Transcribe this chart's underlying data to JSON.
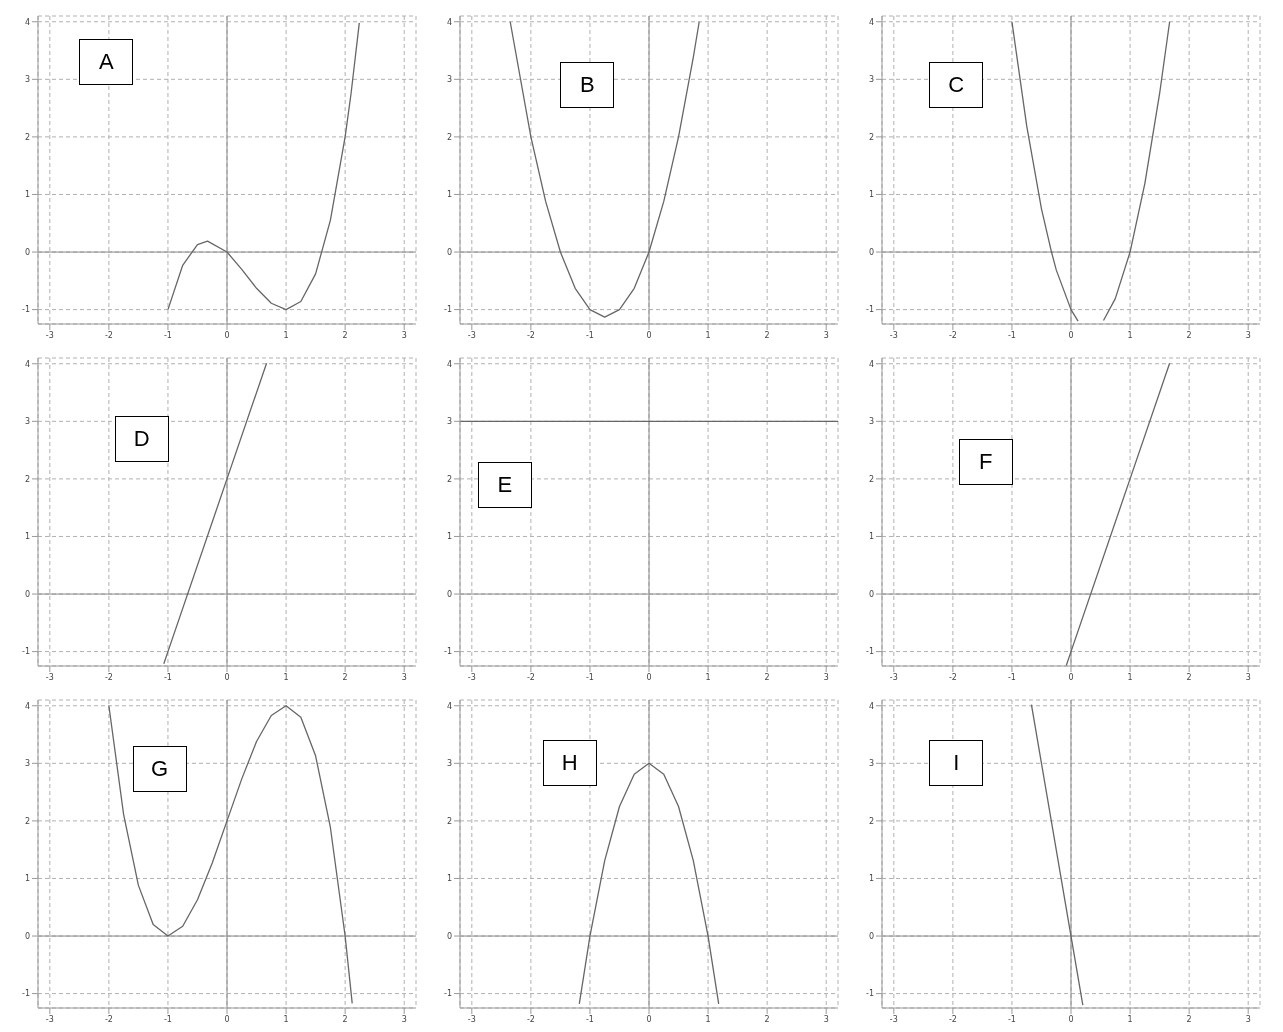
{
  "chart_data": [
    {
      "type": "line",
      "title": "A",
      "xlim": [
        -3.2,
        3.2
      ],
      "ylim": [
        -1.25,
        4.1
      ],
      "xticks": [
        -3,
        -2,
        -1,
        0,
        1,
        2,
        3
      ],
      "yticks": [
        -1,
        0,
        1,
        2,
        3,
        4
      ],
      "grid": true,
      "marker": "none",
      "line_style": "solid",
      "color": "#666666",
      "x": [
        -1,
        -0.75,
        -0.5,
        -0.33,
        0,
        0.25,
        0.5,
        0.75,
        1,
        1.25,
        1.5,
        1.75,
        2,
        2.1,
        2.24
      ],
      "values": [
        -1,
        -0.23,
        0.13,
        0.19,
        0,
        -0.3,
        -0.63,
        -0.89,
        -1,
        -0.86,
        -0.38,
        0.55,
        2,
        2.75,
        3.98
      ]
    },
    {
      "type": "line",
      "title": "B",
      "xlim": [
        -3.2,
        3.2
      ],
      "ylim": [
        -1.25,
        4.1
      ],
      "xticks": [
        -3,
        -2,
        -1,
        0,
        1,
        2,
        3
      ],
      "yticks": [
        -1,
        0,
        1,
        2,
        3,
        4
      ],
      "grid": true,
      "marker": "none",
      "line_style": "solid",
      "color": "#666666",
      "x": [
        -2.35,
        -2,
        -1.75,
        -1.5,
        -1.25,
        -1,
        -0.75,
        -0.5,
        -0.25,
        0,
        0.25,
        0.5,
        0.75,
        0.85
      ],
      "values": [
        4,
        2,
        0.88,
        0,
        -0.63,
        -1,
        -1.13,
        -1,
        -0.63,
        0,
        0.88,
        2,
        3.38,
        4
      ]
    },
    {
      "type": "line",
      "title": "C",
      "xlim": [
        -3.2,
        3.2
      ],
      "ylim": [
        -1.25,
        4.1
      ],
      "xticks": [
        -3,
        -2,
        -1,
        0,
        1,
        2,
        3
      ],
      "yticks": [
        -1,
        0,
        1,
        2,
        3,
        4
      ],
      "grid": true,
      "marker": "none",
      "line_style": "solid",
      "color": "#666666",
      "x": [
        -1,
        -0.75,
        -0.5,
        -0.33,
        -0.25,
        0,
        0.12,
        0.33,
        0.55,
        0.75,
        1,
        1.25,
        1.5,
        1.67
      ],
      "values": [
        4,
        2.19,
        0.75,
        0,
        -0.31,
        -1,
        -1.2,
        null,
        -1.19,
        -0.81,
        0,
        1.19,
        2.75,
        4
      ]
    },
    {
      "type": "line",
      "title": "D",
      "xlim": [
        -3.2,
        3.2
      ],
      "ylim": [
        -1.25,
        4.1
      ],
      "xticks": [
        -3,
        -2,
        -1,
        0,
        1,
        2,
        3
      ],
      "yticks": [
        -1,
        0,
        1,
        2,
        3,
        4
      ],
      "grid": true,
      "marker": "none",
      "line_style": "solid",
      "color": "#666666",
      "x": [
        -1.07,
        -1,
        0,
        0.67
      ],
      "values": [
        -1.21,
        -1,
        2,
        4.01
      ]
    },
    {
      "type": "line",
      "title": "E",
      "xlim": [
        -3.2,
        3.2
      ],
      "ylim": [
        -1.25,
        4.1
      ],
      "xticks": [
        -3,
        -2,
        -1,
        0,
        1,
        2,
        3
      ],
      "yticks": [
        -1,
        0,
        1,
        2,
        3,
        4
      ],
      "grid": true,
      "marker": "none",
      "line_style": "solid",
      "color": "#666666",
      "x": [
        -3.2,
        3.2
      ],
      "values": [
        3,
        3
      ]
    },
    {
      "type": "line",
      "title": "F",
      "xlim": [
        -3.2,
        3.2
      ],
      "ylim": [
        -1.25,
        4.1
      ],
      "xticks": [
        -3,
        -2,
        -1,
        0,
        1,
        2,
        3
      ],
      "yticks": [
        -1,
        0,
        1,
        2,
        3,
        4
      ],
      "grid": true,
      "marker": "none",
      "line_style": "solid",
      "color": "#666666",
      "x": [
        -0.08,
        0,
        1,
        1.67
      ],
      "values": [
        -1.24,
        -1,
        2,
        4.01
      ]
    },
    {
      "type": "line",
      "title": "G",
      "xlim": [
        -3.2,
        3.2
      ],
      "ylim": [
        -1.25,
        4.1
      ],
      "xticks": [
        -3,
        -2,
        -1,
        0,
        1,
        2,
        3
      ],
      "yticks": [
        -1,
        0,
        1,
        2,
        3,
        4
      ],
      "grid": true,
      "marker": "none",
      "line_style": "solid",
      "color": "#666666",
      "x": [
        -2,
        -1.75,
        -1.5,
        -1.25,
        -1,
        -0.75,
        -0.5,
        -0.25,
        0,
        0.25,
        0.5,
        0.75,
        1,
        1.25,
        1.5,
        1.75,
        2,
        2.12
      ],
      "values": [
        4,
        2.11,
        0.88,
        0.2,
        0,
        0.17,
        0.63,
        1.27,
        2,
        2.73,
        3.38,
        3.83,
        4,
        3.8,
        3.13,
        1.89,
        0,
        -1.17
      ]
    },
    {
      "type": "line",
      "title": "H",
      "xlim": [
        -3.2,
        3.2
      ],
      "ylim": [
        -1.25,
        4.1
      ],
      "xticks": [
        -3,
        -2,
        -1,
        0,
        1,
        2,
        3
      ],
      "yticks": [
        -1,
        0,
        1,
        2,
        3,
        4
      ],
      "grid": true,
      "marker": "none",
      "line_style": "solid",
      "color": "#666666",
      "x": [
        -1.18,
        -1,
        -0.75,
        -0.5,
        -0.25,
        0,
        0.25,
        0.5,
        0.75,
        1,
        1.18
      ],
      "values": [
        -1.18,
        0,
        1.31,
        2.25,
        2.81,
        3,
        2.81,
        2.25,
        1.31,
        0,
        -1.18
      ]
    },
    {
      "type": "line",
      "title": "I",
      "xlim": [
        -3.2,
        3.2
      ],
      "ylim": [
        -1.25,
        4.1
      ],
      "xticks": [
        -3,
        -2,
        -1,
        0,
        1,
        2,
        3
      ],
      "yticks": [
        -1,
        0,
        1,
        2,
        3,
        4
      ],
      "grid": true,
      "marker": "none",
      "line_style": "solid",
      "color": "#666666",
      "x": [
        -0.67,
        0,
        0.2
      ],
      "values": [
        4.02,
        0,
        -1.2
      ]
    }
  ]
}
